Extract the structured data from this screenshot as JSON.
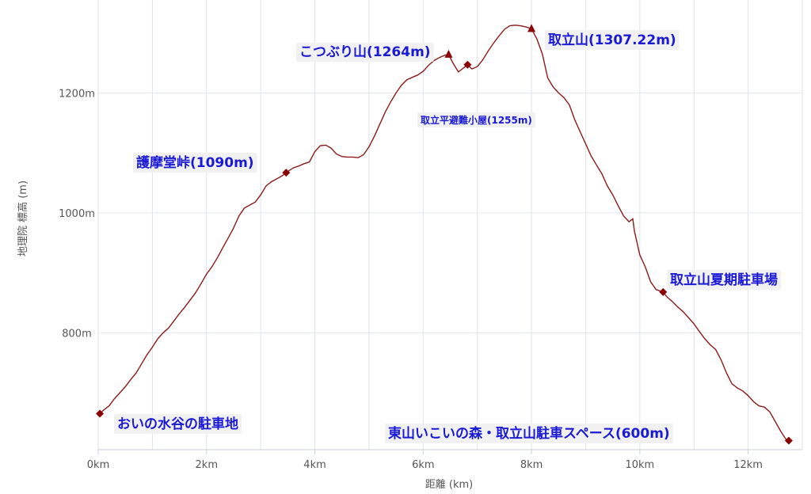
{
  "chart_data": {
    "type": "line",
    "xlabel": "距離 (km)",
    "ylabel": "地理院 標高 (m)",
    "xlim": [
      0,
      13
    ],
    "ylim": [
      605,
      1355
    ],
    "x_ticks": [
      {
        "value": 0,
        "label": "0km"
      },
      {
        "value": 2,
        "label": "2km"
      },
      {
        "value": 4,
        "label": "4km"
      },
      {
        "value": 6,
        "label": "6km"
      },
      {
        "value": 8,
        "label": "8km"
      },
      {
        "value": 10,
        "label": "10km"
      },
      {
        "value": 12,
        "label": "12km"
      }
    ],
    "y_ticks": [
      {
        "value": 800,
        "label": "800m"
      },
      {
        "value": 1000,
        "label": "1000m"
      },
      {
        "value": 1200,
        "label": "1200m"
      }
    ],
    "grid": true,
    "series": [
      {
        "points": [
          [
            0.03,
            665
          ],
          [
            0.1,
            671
          ],
          [
            0.2,
            678
          ],
          [
            0.3,
            690
          ],
          [
            0.4,
            700
          ],
          [
            0.5,
            710
          ],
          [
            0.6,
            722
          ],
          [
            0.7,
            733
          ],
          [
            0.8,
            748
          ],
          [
            0.9,
            763
          ],
          [
            1.0,
            776
          ],
          [
            1.1,
            790
          ],
          [
            1.2,
            800
          ],
          [
            1.3,
            808
          ],
          [
            1.4,
            820
          ],
          [
            1.5,
            832
          ],
          [
            1.6,
            843
          ],
          [
            1.7,
            855
          ],
          [
            1.8,
            867
          ],
          [
            1.9,
            882
          ],
          [
            2.0,
            898
          ],
          [
            2.1,
            910
          ],
          [
            2.2,
            925
          ],
          [
            2.3,
            942
          ],
          [
            2.4,
            958
          ],
          [
            2.5,
            975
          ],
          [
            2.6,
            995
          ],
          [
            2.7,
            1008
          ],
          [
            2.8,
            1013
          ],
          [
            2.9,
            1018
          ],
          [
            3.0,
            1030
          ],
          [
            3.1,
            1045
          ],
          [
            3.2,
            1052
          ],
          [
            3.3,
            1057
          ],
          [
            3.4,
            1062
          ],
          [
            3.47,
            1067
          ],
          [
            3.6,
            1075
          ],
          [
            3.7,
            1078
          ],
          [
            3.8,
            1082
          ],
          [
            3.9,
            1085
          ],
          [
            4.0,
            1102
          ],
          [
            4.1,
            1112
          ],
          [
            4.2,
            1113
          ],
          [
            4.3,
            1108
          ],
          [
            4.4,
            1098
          ],
          [
            4.5,
            1094
          ],
          [
            4.6,
            1093
          ],
          [
            4.7,
            1093
          ],
          [
            4.8,
            1092
          ],
          [
            4.9,
            1097
          ],
          [
            5.0,
            1110
          ],
          [
            5.1,
            1128
          ],
          [
            5.2,
            1148
          ],
          [
            5.3,
            1168
          ],
          [
            5.4,
            1185
          ],
          [
            5.5,
            1200
          ],
          [
            5.6,
            1213
          ],
          [
            5.7,
            1222
          ],
          [
            5.8,
            1226
          ],
          [
            5.9,
            1230
          ],
          [
            6.0,
            1236
          ],
          [
            6.1,
            1246
          ],
          [
            6.2,
            1254
          ],
          [
            6.3,
            1259
          ],
          [
            6.4,
            1263
          ],
          [
            6.47,
            1264
          ],
          [
            6.55,
            1250
          ],
          [
            6.65,
            1235
          ],
          [
            6.75,
            1242
          ],
          [
            6.82,
            1247
          ],
          [
            6.9,
            1240
          ],
          [
            7.0,
            1244
          ],
          [
            7.1,
            1255
          ],
          [
            7.2,
            1270
          ],
          [
            7.3,
            1283
          ],
          [
            7.4,
            1295
          ],
          [
            7.5,
            1306
          ],
          [
            7.6,
            1312
          ],
          [
            7.7,
            1313
          ],
          [
            7.8,
            1312
          ],
          [
            7.9,
            1310
          ],
          [
            8.0,
            1307
          ],
          [
            8.1,
            1290
          ],
          [
            8.2,
            1265
          ],
          [
            8.3,
            1225
          ],
          [
            8.4,
            1210
          ],
          [
            8.5,
            1200
          ],
          [
            8.6,
            1192
          ],
          [
            8.7,
            1180
          ],
          [
            8.8,
            1155
          ],
          [
            8.9,
            1135
          ],
          [
            9.0,
            1115
          ],
          [
            9.1,
            1095
          ],
          [
            9.2,
            1080
          ],
          [
            9.3,
            1065
          ],
          [
            9.4,
            1045
          ],
          [
            9.5,
            1030
          ],
          [
            9.6,
            1012
          ],
          [
            9.7,
            995
          ],
          [
            9.8,
            985
          ],
          [
            9.87,
            990
          ],
          [
            9.9,
            970
          ],
          [
            10.0,
            930
          ],
          [
            10.1,
            910
          ],
          [
            10.2,
            885
          ],
          [
            10.3,
            872
          ],
          [
            10.43,
            868
          ],
          [
            10.5,
            860
          ],
          [
            10.6,
            852
          ],
          [
            10.7,
            843
          ],
          [
            10.8,
            835
          ],
          [
            10.9,
            825
          ],
          [
            11.0,
            815
          ],
          [
            11.1,
            802
          ],
          [
            11.2,
            790
          ],
          [
            11.3,
            780
          ],
          [
            11.4,
            772
          ],
          [
            11.5,
            755
          ],
          [
            11.6,
            733
          ],
          [
            11.7,
            715
          ],
          [
            11.8,
            708
          ],
          [
            11.9,
            703
          ],
          [
            12.0,
            695
          ],
          [
            12.1,
            685
          ],
          [
            12.2,
            678
          ],
          [
            12.3,
            676
          ],
          [
            12.4,
            668
          ],
          [
            12.5,
            652
          ],
          [
            12.6,
            636
          ],
          [
            12.7,
            622
          ],
          [
            12.75,
            620
          ]
        ]
      }
    ],
    "annotations": [
      {
        "x": 0.03,
        "y": 665,
        "marker": "diamond",
        "text": "おいの水谷の駐車地"
      },
      {
        "x": 3.47,
        "y": 1067,
        "marker": "diamond",
        "text": "護摩堂峠(1090m)"
      },
      {
        "x": 6.47,
        "y": 1264,
        "marker": "triangle",
        "text": "こつぶり山(1264m)"
      },
      {
        "x": 6.82,
        "y": 1247,
        "marker": "diamond",
        "text": "取立平避難小屋(1255m)"
      },
      {
        "x": 8.0,
        "y": 1307,
        "marker": "triangle",
        "text": "取立山(1307.22m)"
      },
      {
        "x": 10.43,
        "y": 868,
        "marker": "diamond",
        "text": "取立山夏期駐車場"
      },
      {
        "x": 12.75,
        "y": 620,
        "marker": "diamond",
        "text": "東山いこいの森・取立山駐車スペース(600m)"
      }
    ]
  }
}
